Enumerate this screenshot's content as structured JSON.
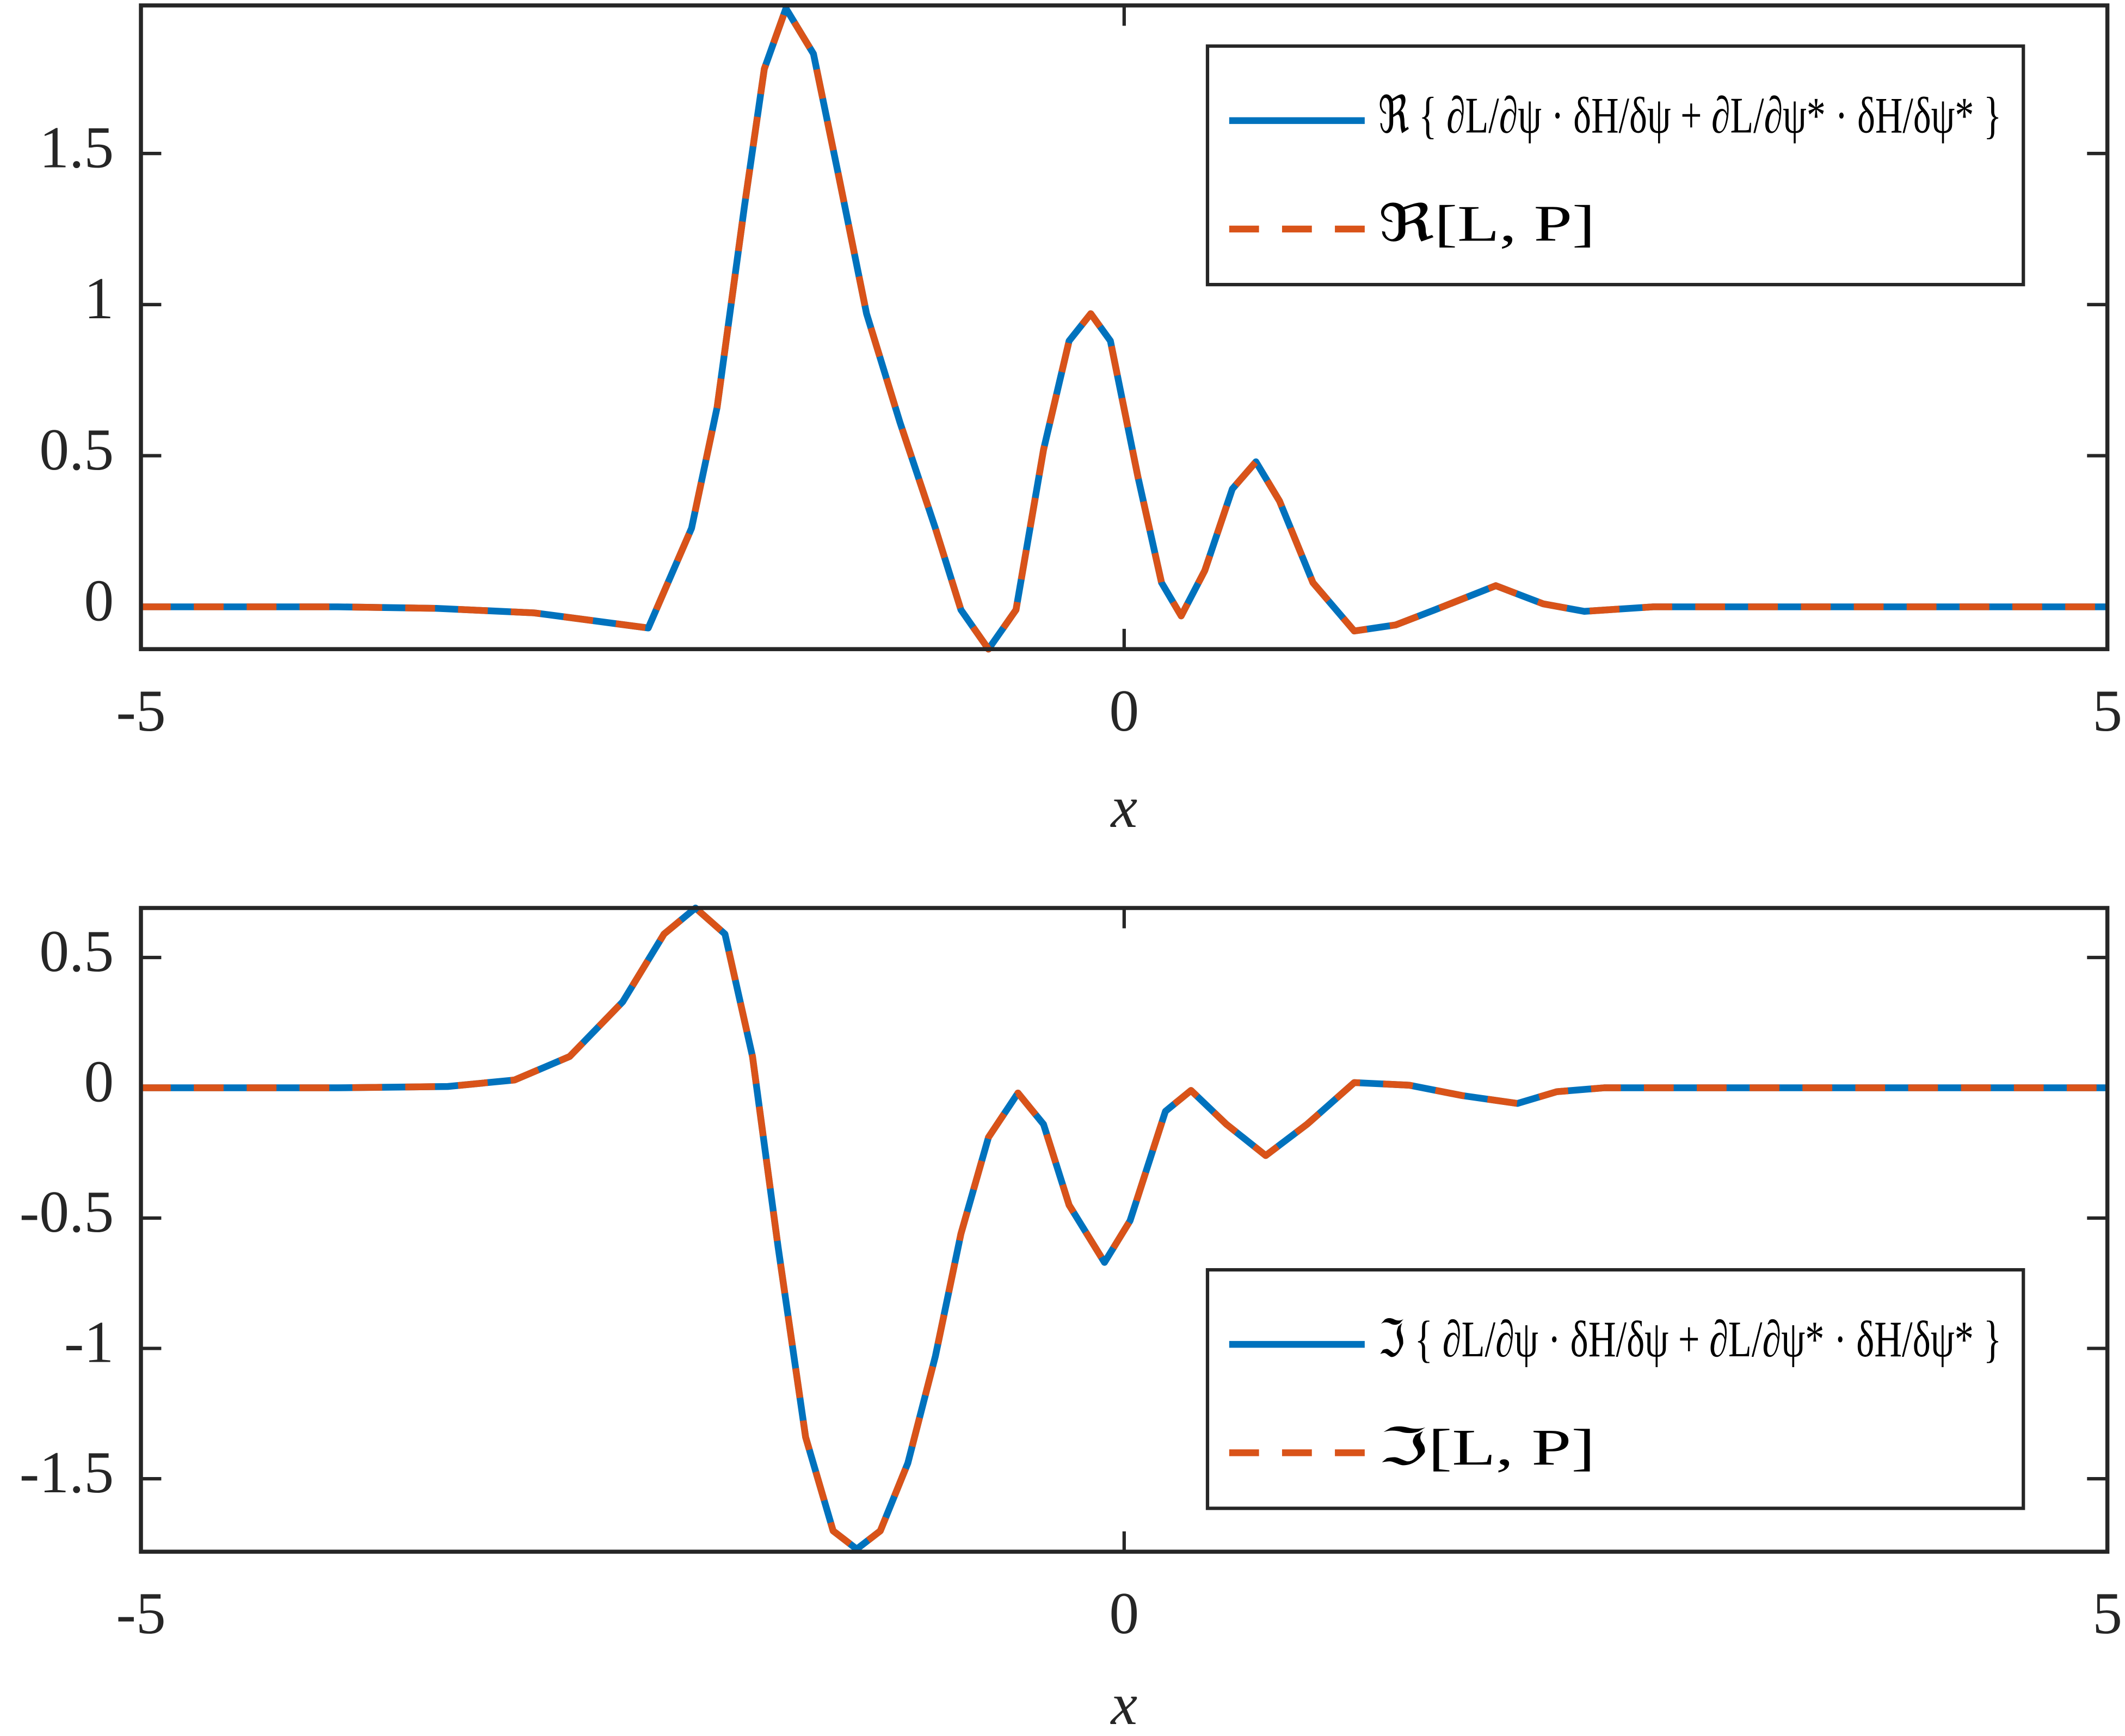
{
  "chart_data": [
    {
      "type": "line",
      "xlabel": "x",
      "xlim": [
        -5,
        5
      ],
      "xticks": [
        -5,
        0,
        5
      ],
      "ylim": [
        -0.14,
        1.99
      ],
      "yticks": [
        0,
        0.5,
        1,
        1.5
      ],
      "legend": "upper right",
      "x": [
        -5,
        -4,
        -3.5,
        -3,
        -2.42,
        -2.2,
        -2.07,
        -1.93,
        -1.83,
        -1.72,
        -1.58,
        -1.45,
        -1.31,
        -1.14,
        -0.96,
        -0.83,
        -0.69,
        -0.55,
        -0.41,
        -0.28,
        -0.17,
        -0.07,
        0.07,
        0.19,
        0.29,
        0.41,
        0.55,
        0.67,
        0.79,
        0.96,
        1.17,
        1.38,
        1.58,
        1.89,
        2.13,
        2.34,
        2.69,
        3.5,
        5
      ],
      "series": [
        {
          "name": "ℜ { ∂L/∂ψ · δH/δψ + ∂L/∂ψ* · δH/δψ* }",
          "color": "#0072bd",
          "style": "solid",
          "values": [
            0,
            0,
            -0.005,
            -0.02,
            -0.07,
            0.26,
            0.66,
            1.33,
            1.78,
            1.98,
            1.83,
            1.42,
            0.97,
            0.61,
            0.26,
            -0.01,
            -0.14,
            -0.01,
            0.52,
            0.88,
            0.97,
            0.88,
            0.43,
            0.08,
            -0.03,
            0.12,
            0.39,
            0.48,
            0.35,
            0.08,
            -0.08,
            -0.06,
            -0.01,
            0.07,
            0.01,
            -0.015,
            0,
            0,
            0
          ]
        },
        {
          "name": "ℜ[L, P]",
          "color": "#d95319",
          "style": "dashed",
          "values": [
            0,
            0,
            -0.005,
            -0.02,
            -0.07,
            0.26,
            0.66,
            1.33,
            1.78,
            1.98,
            1.83,
            1.42,
            0.97,
            0.61,
            0.26,
            -0.01,
            -0.14,
            -0.01,
            0.52,
            0.88,
            0.97,
            0.88,
            0.43,
            0.08,
            -0.03,
            0.12,
            0.39,
            0.48,
            0.35,
            0.08,
            -0.08,
            -0.06,
            -0.01,
            0.07,
            0.01,
            -0.015,
            0,
            0,
            0
          ]
        }
      ]
    },
    {
      "type": "line",
      "xlabel": "x",
      "xlim": [
        -5,
        5
      ],
      "xticks": [
        -5,
        0,
        5
      ],
      "ylim": [
        -1.78,
        0.69
      ],
      "yticks": [
        -1.5,
        -1,
        -0.5,
        0,
        0.5
      ],
      "legend": "lower right",
      "x": [
        -5,
        -4,
        -3.44,
        -3.1,
        -2.82,
        -2.55,
        -2.34,
        -2.18,
        -2.03,
        -1.89,
        -1.76,
        -1.62,
        -1.48,
        -1.36,
        -1.24,
        -1.1,
        -0.96,
        -0.83,
        -0.69,
        -0.54,
        -0.41,
        -0.28,
        -0.1,
        0.03,
        0.21,
        0.34,
        0.52,
        0.72,
        0.93,
        1.17,
        1.45,
        1.72,
        2,
        2.2,
        2.44,
        3.5,
        5
      ],
      "series": [
        {
          "name": "ℑ { ∂L/∂ψ · δH/δψ + ∂L/∂ψ* · δH/δψ* }",
          "color": "#0072bd",
          "style": "solid",
          "values": [
            0,
            0,
            0.005,
            0.03,
            0.12,
            0.33,
            0.59,
            0.69,
            0.59,
            0.12,
            -0.61,
            -1.34,
            -1.7,
            -1.77,
            -1.7,
            -1.44,
            -1.03,
            -0.56,
            -0.19,
            -0.02,
            -0.14,
            -0.45,
            -0.67,
            -0.51,
            -0.09,
            -0.01,
            -0.14,
            -0.26,
            -0.14,
            0.02,
            0.01,
            -0.03,
            -0.06,
            -0.015,
            0,
            0,
            0
          ]
        },
        {
          "name": "ℑ[L, P]",
          "color": "#d95319",
          "style": "dashed",
          "values": [
            0,
            0,
            0.005,
            0.03,
            0.12,
            0.33,
            0.59,
            0.69,
            0.59,
            0.12,
            -0.61,
            -1.34,
            -1.7,
            -1.77,
            -1.7,
            -1.44,
            -1.03,
            -0.56,
            -0.19,
            -0.02,
            -0.14,
            -0.45,
            -0.67,
            -0.51,
            -0.09,
            -0.01,
            -0.14,
            -0.26,
            -0.14,
            0.02,
            0.01,
            -0.03,
            -0.06,
            -0.015,
            0,
            0,
            0
          ]
        }
      ]
    }
  ]
}
